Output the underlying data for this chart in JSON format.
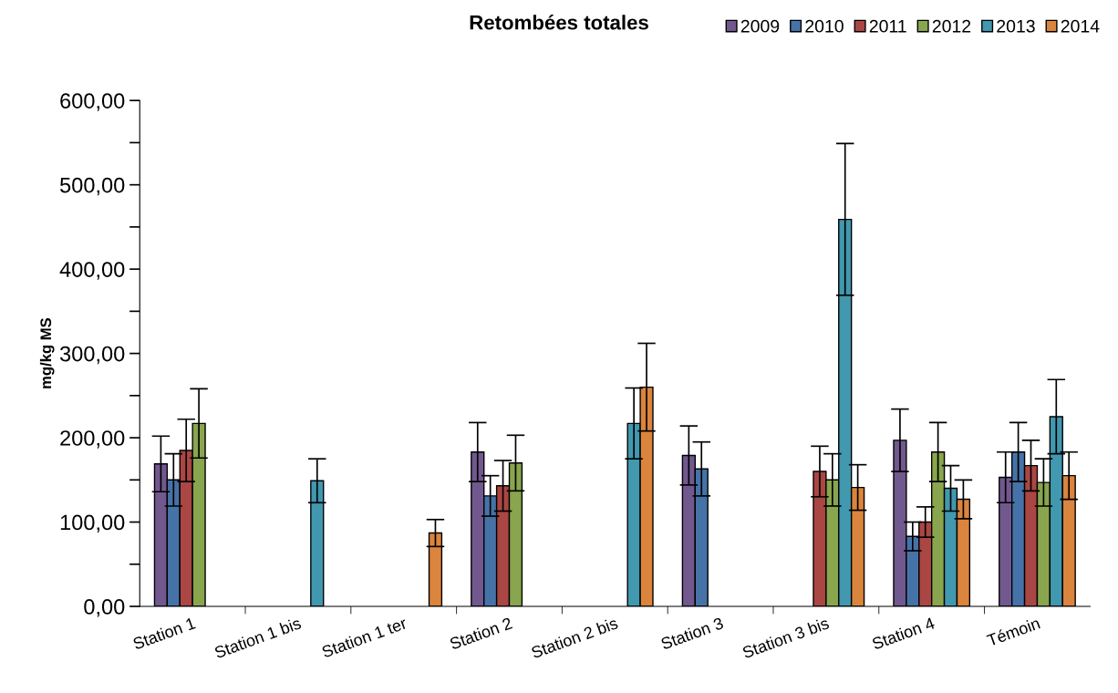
{
  "chart_data": {
    "type": "bar",
    "title": "Retombées totales",
    "ylabel": "mg/kg MS",
    "categories": [
      "Station 1",
      "Station 1 bis",
      "Station 1 ter",
      "Station 2",
      "Station 2 bis",
      "Station 3",
      "Station 3 bis",
      "Station 4",
      "Témoin"
    ],
    "series": [
      {
        "name": "2009",
        "color": "#71588f",
        "values": [
          169,
          null,
          null,
          183,
          null,
          179,
          null,
          197,
          153
        ],
        "errors": [
          33,
          null,
          null,
          35,
          null,
          35,
          null,
          37,
          30
        ]
      },
      {
        "name": "2010",
        "color": "#4673a7",
        "values": [
          150,
          null,
          null,
          131,
          null,
          163,
          null,
          83,
          183
        ],
        "errors": [
          31,
          null,
          null,
          24,
          null,
          32,
          null,
          17,
          35
        ]
      },
      {
        "name": "2011",
        "color": "#aa4643",
        "values": [
          185,
          null,
          null,
          143,
          null,
          null,
          160,
          100,
          167
        ],
        "errors": [
          37,
          null,
          null,
          30,
          null,
          null,
          30,
          18,
          30
        ]
      },
      {
        "name": "2012",
        "color": "#89a54e",
        "values": [
          217,
          null,
          null,
          170,
          null,
          null,
          150,
          183,
          147
        ],
        "errors": [
          41,
          null,
          null,
          33,
          null,
          null,
          31,
          35,
          28
        ]
      },
      {
        "name": "2013",
        "color": "#4198af",
        "values": [
          null,
          149,
          null,
          null,
          217,
          null,
          459,
          140,
          225
        ],
        "errors": [
          null,
          26,
          null,
          null,
          42,
          null,
          90,
          27,
          44
        ]
      },
      {
        "name": "2014",
        "color": "#db843d",
        "values": [
          null,
          null,
          87,
          null,
          260,
          null,
          141,
          127,
          155
        ],
        "errors": [
          null,
          null,
          16,
          null,
          52,
          null,
          27,
          23,
          28
        ]
      }
    ],
    "ylim": [
      0,
      600
    ],
    "yticks": [
      {
        "value": 0,
        "label": "0,00"
      },
      {
        "value": 50,
        "label": null
      },
      {
        "value": 100,
        "label": "100,00"
      },
      {
        "value": 150,
        "label": null
      },
      {
        "value": 200,
        "label": "200,00"
      },
      {
        "value": 250,
        "label": null
      },
      {
        "value": 300,
        "label": "300,00"
      },
      {
        "value": 350,
        "label": null
      },
      {
        "value": 400,
        "label": "400,00"
      },
      {
        "value": 450,
        "label": null
      },
      {
        "value": 500,
        "label": "500,00"
      },
      {
        "value": 550,
        "label": null
      },
      {
        "value": 600,
        "label": "600,00"
      }
    ],
    "grid": false,
    "legend": "top right"
  }
}
